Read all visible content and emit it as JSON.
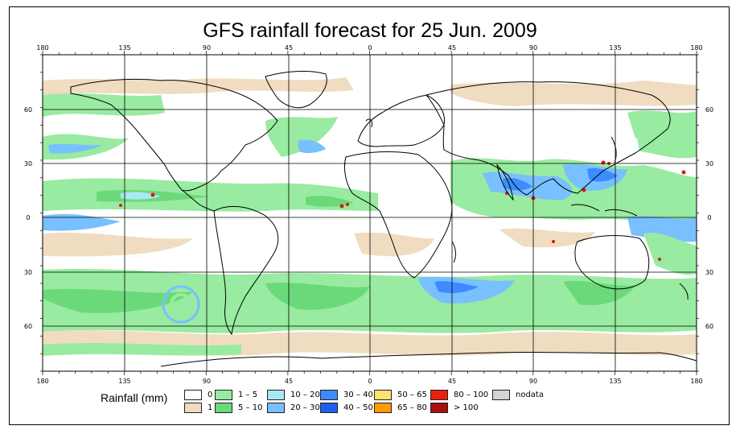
{
  "title": "GFS rainfall forecast for 25 Jun. 2009",
  "map": {
    "top_lon_labels": [
      "180",
      "135",
      "90",
      "45",
      "0",
      "45",
      "90",
      "135",
      "180"
    ],
    "bottom_lon_labels": [
      "180",
      "135",
      "90",
      "45",
      "0",
      "45",
      "90",
      "135",
      "180"
    ],
    "left_lat_labels": [
      "60",
      "30",
      "0",
      "30",
      "60"
    ],
    "right_lat_labels": [
      "60",
      "30",
      "0",
      "30",
      "60"
    ],
    "colors": {
      "ocean": "#ffffff",
      "land": "#ffffff",
      "rain_1": "#f0dcc0",
      "rain_1_5": "#98eba0",
      "rain_5_10": "#6bd97a",
      "rain_10_20": "#a8e8f4",
      "rain_20_30": "#78c0ff",
      "rain_30_40": "#3c8cff",
      "rain_40_50": "#1f5ef0",
      "rain_heavy": "#d81a12"
    }
  },
  "legend": {
    "title": "Rainfall (mm)",
    "items": [
      {
        "label": "0",
        "color": "#ffffff"
      },
      {
        "label": "1",
        "color": "#f0dcc0"
      },
      {
        "label": "1 – 5",
        "color": "#98eba0"
      },
      {
        "label": "5 – 10",
        "color": "#6bd97a"
      },
      {
        "label": "10 – 20",
        "color": "#a8e8f4"
      },
      {
        "label": "20 – 30",
        "color": "#78c0ff"
      },
      {
        "label": "30 – 40",
        "color": "#3c8cff"
      },
      {
        "label": "40 – 50",
        "color": "#1f5ef0"
      },
      {
        "label": "50 – 65",
        "color": "#ffe070"
      },
      {
        "label": "65 – 80",
        "color": "#ff9a00"
      },
      {
        "label": "80 – 100",
        "color": "#e8200e"
      },
      {
        "label": "> 100",
        "color": "#a81010"
      },
      {
        "label": "nodata",
        "color": "#d3d3d3"
      }
    ]
  }
}
